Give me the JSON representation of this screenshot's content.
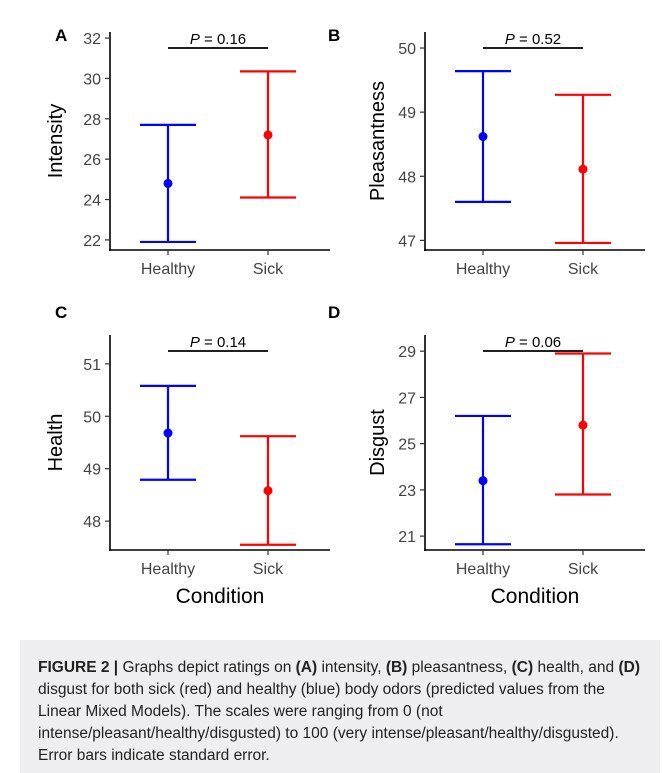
{
  "chart_data": [
    {
      "type": "errorbar",
      "panel_label": "A",
      "ylabel": "Intensity",
      "xlabel": "",
      "categories": [
        "Healthy",
        "Sick"
      ],
      "values": [
        24.8,
        27.2
      ],
      "error_low": [
        21.9,
        24.1
      ],
      "error_high": [
        27.7,
        30.35
      ],
      "colors": [
        "#0000ff",
        "#ff0000"
      ],
      "ylim": [
        21.5,
        32.3
      ],
      "yticks": [
        22,
        24,
        26,
        28,
        30,
        32
      ],
      "pvalue": "= 0.16"
    },
    {
      "type": "errorbar",
      "panel_label": "B",
      "ylabel": "Pleasantness",
      "xlabel": "",
      "categories": [
        "Healthy",
        "Sick"
      ],
      "values": [
        48.62,
        48.11
      ],
      "error_low": [
        47.6,
        46.96
      ],
      "error_high": [
        49.64,
        49.27
      ],
      "colors": [
        "#0000ff",
        "#ff0000"
      ],
      "ylim": [
        46.85,
        50.25
      ],
      "yticks": [
        47,
        48,
        49,
        50
      ],
      "pvalue": "= 0.52"
    },
    {
      "type": "errorbar",
      "panel_label": "C",
      "ylabel": "Health",
      "xlabel": "Condition",
      "categories": [
        "Healthy",
        "Sick"
      ],
      "values": [
        49.68,
        48.58
      ],
      "error_low": [
        48.79,
        47.55
      ],
      "error_high": [
        50.58,
        49.62
      ],
      "colors": [
        "#0000ff",
        "#ff0000"
      ],
      "ylim": [
        47.45,
        51.55
      ],
      "yticks": [
        48,
        49,
        50,
        51
      ],
      "pvalue": "= 0.14"
    },
    {
      "type": "errorbar",
      "panel_label": "D",
      "ylabel": "Disgust",
      "xlabel": "Condition",
      "categories": [
        "Healthy",
        "Sick"
      ],
      "values": [
        23.4,
        25.8
      ],
      "error_low": [
        20.65,
        22.8
      ],
      "error_high": [
        26.2,
        28.9
      ],
      "colors": [
        "#0000ff",
        "#ff0000"
      ],
      "ylim": [
        20.4,
        29.7
      ],
      "yticks": [
        21,
        23,
        25,
        27,
        29
      ],
      "pvalue": "= 0.06"
    }
  ],
  "pvalue_prefix": "P",
  "caption": {
    "figure_label": "FIGURE 2 |",
    "t1": " Graphs depict ratings on ",
    "a": "(A)",
    "t2": " intensity, ",
    "b": "(B)",
    "t3": " pleasantness, ",
    "c": "(C)",
    "t4": " health, and ",
    "d": "(D)",
    "t5": " disgust for both sick (red) and healthy (blue) body odors (predicted values from the Linear Mixed Models). The scales were ranging from 0 (not intense/pleasant/healthy/disgusted) to 100 (very intense/pleasant/healthy/disgusted). Error bars indicate standard error."
  }
}
